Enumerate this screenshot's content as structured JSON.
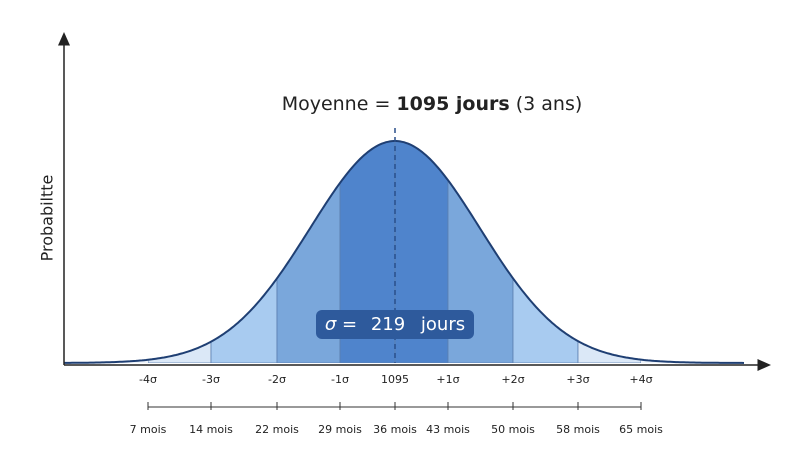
{
  "axis_label": "Probabiltte",
  "title": {
    "prefix": "Moyenne =",
    "bold": "1095 jours",
    "suffix": "(3 ans)"
  },
  "sigma_label": {
    "symbol": "σ =",
    "value": "219",
    "unit": "jours"
  },
  "sigma_ticks": [
    "-4σ",
    "-3σ",
    "-2σ",
    "-1σ",
    "1095",
    "+1σ",
    "+2σ",
    "+3σ",
    "+4σ"
  ],
  "month_ticks": [
    "7 mois",
    "14 mois",
    "22 mois",
    "29 mois",
    "36 mois",
    "43 mois",
    "50 mois",
    "58 mois",
    "65 mois"
  ]
}
